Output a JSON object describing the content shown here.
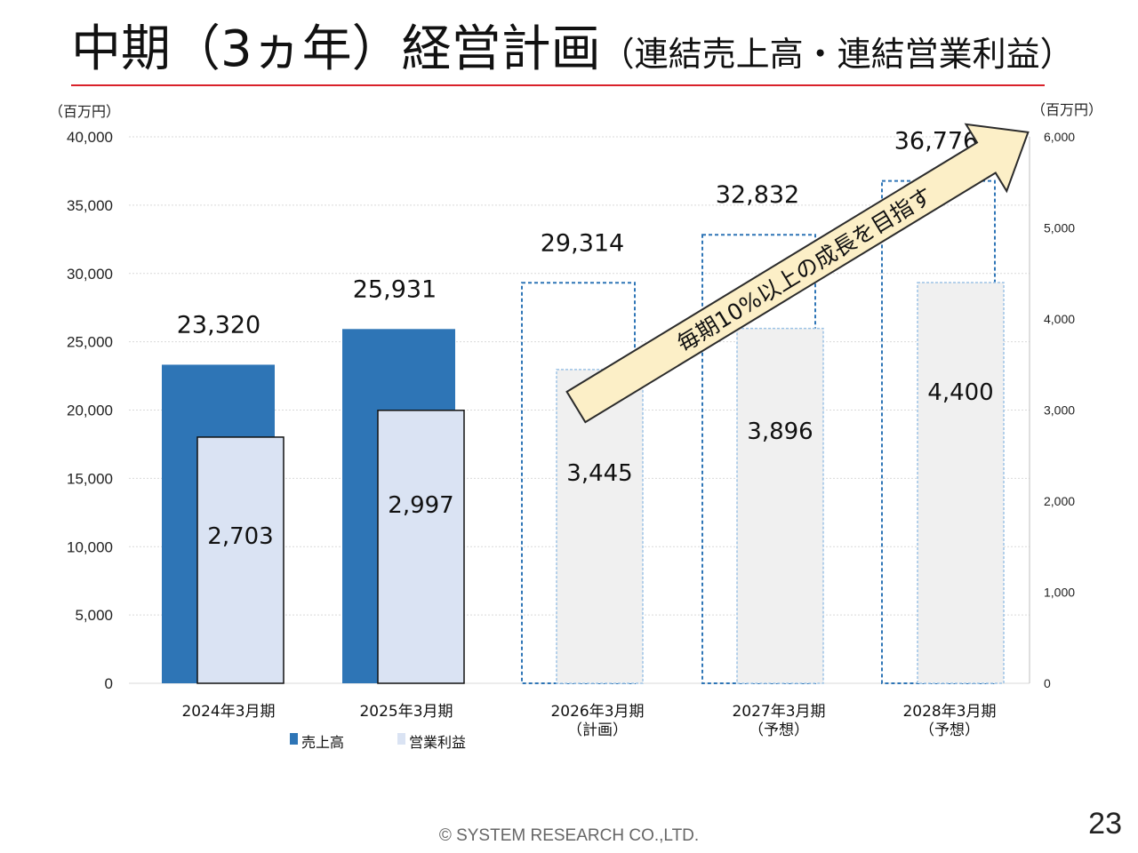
{
  "slide": {
    "title_main": "中期（3ヵ年）経営計画",
    "title_sub": "（連結売上高・連結営業利益）",
    "unit_left": "（百万円）",
    "unit_right": "（百万円）",
    "arrow_text": "毎期10%以上の成長を目指す",
    "footer": "© SYSTEM RESEARCH CO.,LTD.",
    "page_number": "23"
  },
  "legend": {
    "sales_label": "売上高",
    "profit_label": "営業利益"
  },
  "colors": {
    "sales_actual": "#2e75b6",
    "profit_actual": "#dae3f3",
    "sales_plan_border": "#2e75b6",
    "profit_plan_fill": "#f0f0f0",
    "profit_plan_border": "#9dc3e6",
    "title_rule": "#d9222a",
    "arrow_fill": "#fcefc7"
  },
  "chart_data": {
    "type": "bar",
    "categories": [
      "2024年3月期",
      "2025年3月期",
      "2026年3月期\n（計画）",
      "2027年3月期\n（予想）",
      "2028年3月期\n（予想）"
    ],
    "series": [
      {
        "name": "売上高",
        "axis": "left",
        "values": [
          23320,
          25931,
          29314,
          32832,
          36776
        ],
        "labels": [
          "23,320",
          "25,931",
          "29,314",
          "32,832",
          "36,776"
        ],
        "projected": [
          false,
          false,
          true,
          true,
          true
        ]
      },
      {
        "name": "営業利益",
        "axis": "right",
        "values": [
          2703,
          2997,
          3445,
          3896,
          4400
        ],
        "labels": [
          "2,703",
          "2,997",
          "3,445",
          "3,896",
          "4,400"
        ],
        "projected": [
          false,
          false,
          true,
          true,
          true
        ]
      }
    ],
    "y_left": {
      "min": 0,
      "max": 40000,
      "ticks": [
        "0",
        "5,000",
        "10,000",
        "15,000",
        "20,000",
        "25,000",
        "30,000",
        "35,000",
        "40,000"
      ]
    },
    "y_right": {
      "min": 0,
      "max": 6000,
      "ticks": [
        "0",
        "1,000",
        "2,000",
        "3,000",
        "4,000",
        "5,000",
        "6,000"
      ]
    },
    "grid": true,
    "legend_position": "bottom-left"
  }
}
